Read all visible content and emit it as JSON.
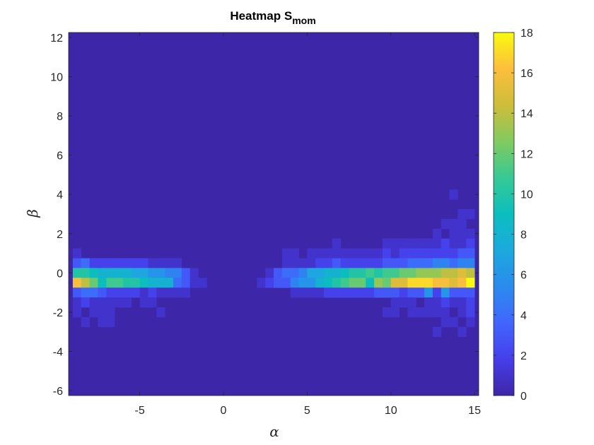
{
  "chart_data": {
    "type": "heatmap",
    "title": "Heatmap S",
    "title_subscript": "mom",
    "xlabel": "α",
    "ylabel": "β",
    "xlim": [
      -9.25,
      15.25
    ],
    "ylim": [
      -6.25,
      12.25
    ],
    "x_ticks": [
      -5,
      0,
      5,
      10,
      15
    ],
    "y_ticks": [
      -6,
      -4,
      -2,
      0,
      2,
      4,
      6,
      8,
      10,
      12
    ],
    "colorbar": {
      "min": 0,
      "max": 18,
      "ticks": [
        0,
        2,
        4,
        6,
        8,
        10,
        12,
        14,
        16,
        18
      ],
      "colormap": "parula"
    },
    "x_centers": [
      -8.75,
      -8.25,
      -7.75,
      -7.25,
      -6.75,
      -6.25,
      -5.75,
      -5.25,
      -4.75,
      -4.25,
      -3.75,
      -3.25,
      -2.75,
      -2.25,
      -1.75,
      -1.25,
      -0.75,
      -0.25,
      0.25,
      0.75,
      1.25,
      1.75,
      2.25,
      2.75,
      3.25,
      3.75,
      4.25,
      4.75,
      5.25,
      5.75,
      6.25,
      6.75,
      7.25,
      7.75,
      8.25,
      8.75,
      9.25,
      9.75,
      10.25,
      10.75,
      11.25,
      11.75,
      12.25,
      12.75,
      13.25,
      13.75,
      14.25,
      14.75
    ],
    "rows": [
      {
        "y": 4.0,
        "values": [
          0,
          0,
          0,
          0,
          0,
          0,
          0,
          0,
          0,
          0,
          0,
          0,
          0,
          0,
          0,
          0,
          0,
          0,
          0,
          0,
          0,
          0,
          0,
          0,
          0,
          0,
          0,
          0,
          0,
          0,
          0,
          0,
          0,
          0,
          0,
          0,
          0,
          0,
          0,
          0,
          0,
          0,
          0,
          0,
          0,
          1,
          0,
          0
        ]
      },
      {
        "y": 3.0,
        "values": [
          0,
          0,
          0,
          0,
          0,
          0,
          0,
          0,
          0,
          0,
          0,
          0,
          0,
          0,
          0,
          0,
          0,
          0,
          0,
          0,
          0,
          0,
          0,
          0,
          0,
          0,
          0,
          0,
          0,
          0,
          0,
          0,
          0,
          0,
          0,
          0,
          0,
          0,
          0,
          0,
          0,
          0,
          0,
          0,
          0,
          0,
          1,
          1
        ]
      },
      {
        "y": 2.5,
        "values": [
          0,
          0,
          0,
          0,
          0,
          0,
          0,
          0,
          0,
          0,
          0,
          0,
          0,
          0,
          0,
          0,
          0,
          0,
          0,
          0,
          0,
          0,
          0,
          0,
          0,
          0,
          0,
          0,
          0,
          0,
          0,
          0,
          0,
          0,
          0,
          0,
          0,
          0,
          0,
          0,
          0,
          0,
          0,
          0,
          1,
          1,
          1,
          0
        ]
      },
      {
        "y": 2.0,
        "values": [
          0,
          0,
          0,
          0,
          0,
          0,
          0,
          0,
          0,
          0,
          0,
          0,
          0,
          0,
          0,
          0,
          0,
          0,
          0,
          0,
          0,
          0,
          0,
          0,
          0,
          0,
          0,
          0,
          0,
          0,
          0,
          0,
          0,
          0,
          0,
          0,
          0,
          0,
          0,
          0,
          0,
          0,
          0,
          1,
          0,
          1,
          1,
          1
        ]
      },
      {
        "y": 1.5,
        "values": [
          0,
          0,
          0,
          0,
          0,
          0,
          0,
          0,
          0,
          0,
          0,
          0,
          0,
          0,
          0,
          0,
          0,
          0,
          0,
          0,
          0,
          0,
          0,
          0,
          0,
          0,
          0,
          0,
          0,
          0,
          0,
          1,
          0,
          0,
          0,
          0,
          0,
          1,
          1,
          1,
          1,
          1,
          1,
          1,
          2,
          1,
          1,
          2
        ]
      },
      {
        "y": 1.0,
        "values": [
          1,
          0,
          0,
          0,
          0,
          0,
          0,
          0,
          0,
          0,
          0,
          0,
          0,
          0,
          0,
          0,
          0,
          0,
          0,
          0,
          0,
          0,
          0,
          0,
          0,
          1,
          1,
          0,
          1,
          1,
          1,
          1,
          1,
          1,
          1,
          1,
          1,
          2,
          1,
          2,
          2,
          2,
          2,
          2,
          2,
          2,
          3,
          3
        ]
      },
      {
        "y": 0.5,
        "values": [
          3,
          4,
          2,
          2,
          2,
          2,
          2,
          2,
          2,
          1,
          1,
          1,
          1,
          0,
          0,
          0,
          0,
          0,
          0,
          0,
          0,
          0,
          0,
          0,
          0,
          1,
          1,
          1,
          1,
          2,
          2,
          3,
          2,
          2,
          2,
          2,
          2,
          3,
          3,
          3,
          4,
          4,
          4,
          5,
          5,
          4,
          5,
          5
        ]
      },
      {
        "y": 0.0,
        "values": [
          10,
          10,
          9,
          8,
          8,
          8,
          8,
          7,
          7,
          6,
          6,
          5,
          5,
          3,
          1,
          0,
          0,
          0,
          0,
          0,
          0,
          0,
          0,
          1,
          3,
          4,
          4,
          5,
          7,
          7,
          8,
          8,
          9,
          10,
          10,
          11,
          10,
          11,
          11,
          12,
          12,
          13,
          13,
          13,
          14,
          14,
          15,
          14
        ]
      },
      {
        "y": -0.5,
        "values": [
          16,
          14,
          12,
          9,
          11,
          11,
          10,
          10,
          9,
          8,
          8,
          8,
          4,
          3,
          1,
          1,
          0,
          0,
          0,
          0,
          0,
          0,
          1,
          2,
          3,
          3,
          5,
          6,
          6,
          8,
          9,
          10,
          11,
          12,
          12,
          9,
          13,
          12,
          15,
          15,
          17,
          17,
          17,
          16,
          16,
          15,
          16,
          18
        ]
      },
      {
        "y": -1.0,
        "values": [
          3,
          4,
          4,
          3,
          2,
          2,
          2,
          2,
          1,
          2,
          1,
          1,
          1,
          1,
          0,
          0,
          0,
          0,
          0,
          0,
          0,
          0,
          0,
          0,
          0,
          0,
          1,
          1,
          1,
          1,
          2,
          2,
          2,
          2,
          2,
          2,
          3,
          3,
          3,
          2,
          3,
          3,
          6,
          2,
          6,
          3,
          3,
          3
        ]
      },
      {
        "y": -1.5,
        "values": [
          1,
          2,
          1,
          1,
          1,
          1,
          1,
          0,
          1,
          1,
          0,
          0,
          0,
          0,
          0,
          0,
          0,
          0,
          0,
          0,
          0,
          0,
          0,
          0,
          0,
          0,
          0,
          0,
          0,
          0,
          0,
          0,
          0,
          0,
          0,
          0,
          0,
          0,
          1,
          1,
          1,
          0,
          1,
          1,
          2,
          1,
          1,
          2
        ]
      },
      {
        "y": -2.0,
        "values": [
          1,
          0,
          1,
          1,
          1,
          0,
          0,
          0,
          0,
          0,
          1,
          0,
          0,
          0,
          0,
          0,
          0,
          0,
          0,
          0,
          0,
          0,
          0,
          0,
          0,
          0,
          0,
          0,
          0,
          0,
          0,
          0,
          0,
          0,
          0,
          0,
          0,
          1,
          1,
          0,
          1,
          1,
          1,
          1,
          1,
          0,
          1,
          2
        ]
      },
      {
        "y": -2.5,
        "values": [
          0,
          1,
          0,
          1,
          1,
          0,
          0,
          0,
          0,
          0,
          0,
          0,
          0,
          0,
          0,
          0,
          0,
          0,
          0,
          0,
          0,
          0,
          0,
          0,
          0,
          0,
          0,
          0,
          0,
          0,
          0,
          0,
          0,
          0,
          0,
          0,
          0,
          0,
          0,
          0,
          0,
          0,
          0,
          0,
          1,
          1,
          0,
          1
        ]
      },
      {
        "y": -3.0,
        "values": [
          0,
          0,
          0,
          0,
          0,
          0,
          0,
          0,
          0,
          0,
          0,
          0,
          0,
          0,
          0,
          0,
          0,
          0,
          0,
          0,
          0,
          0,
          0,
          0,
          0,
          0,
          0,
          0,
          0,
          0,
          0,
          0,
          0,
          0,
          0,
          0,
          0,
          0,
          0,
          0,
          0,
          0,
          0,
          1,
          0,
          0,
          1,
          0
        ]
      }
    ]
  }
}
